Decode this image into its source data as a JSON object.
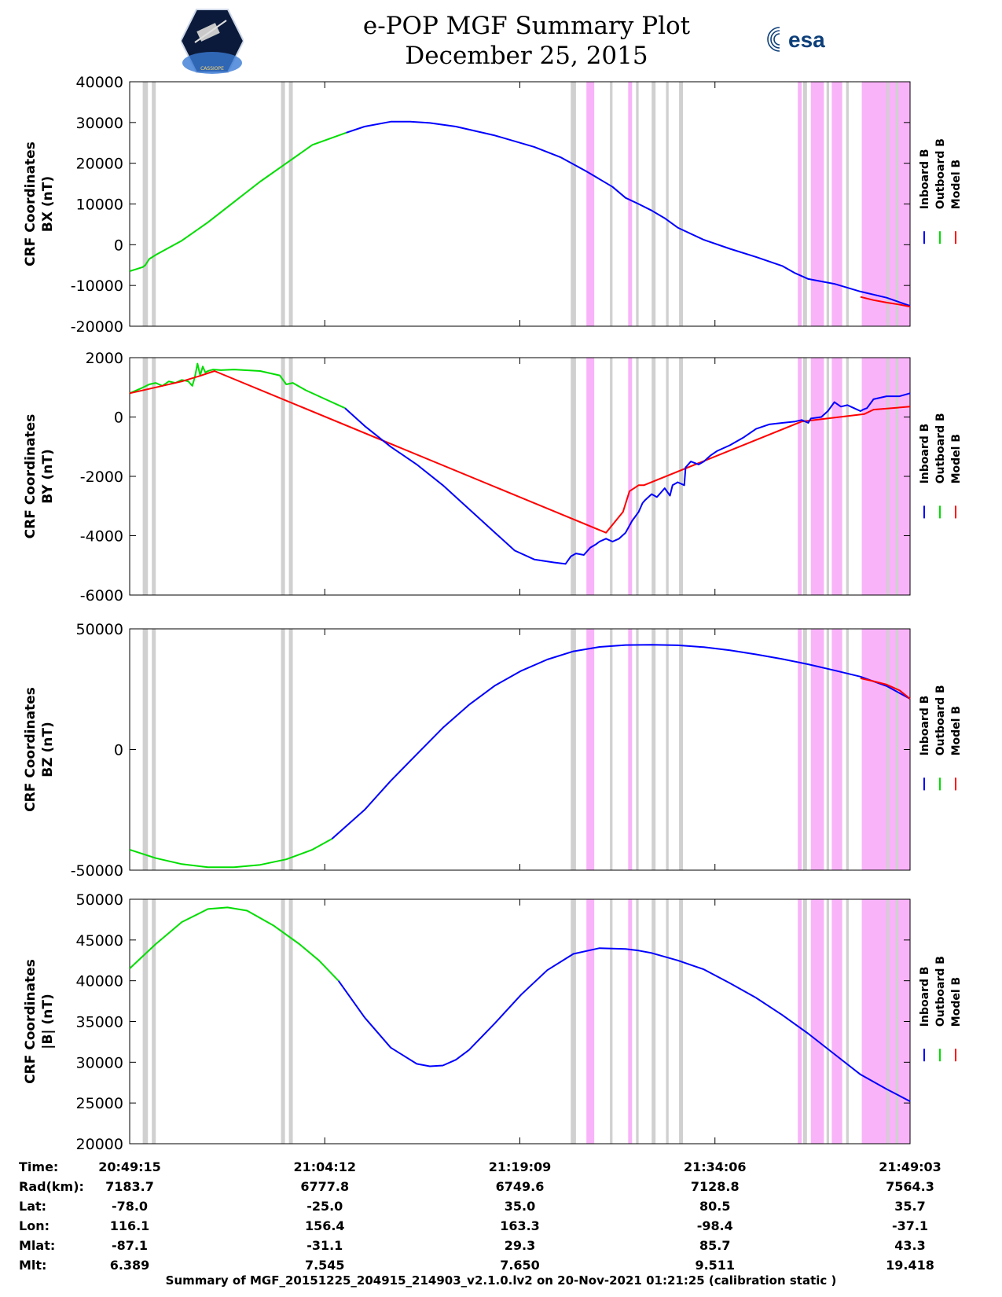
{
  "header": {
    "title": "e-POP MGF Summary Plot",
    "date": "December 25, 2015",
    "left_logo_text": "CASSIOPE",
    "right_logo_text": "esa"
  },
  "colors": {
    "inboard": "#0000ff",
    "outboard": "#00dd00",
    "model": "#ff0000",
    "gray_band": "#d0d0d0",
    "magenta_band": "#f9b3f9"
  },
  "legend": {
    "inboard": "Inboard B",
    "outboard": "Outboard B",
    "model": "Model B"
  },
  "time_axis": {
    "tmin_min": 0,
    "tmax_min": 59.8,
    "ticks": [
      {
        "t": 0,
        "label": "20:49:15"
      },
      {
        "t": 14.95,
        "label": "21:04:12"
      },
      {
        "t": 29.9,
        "label": "21:19:09"
      },
      {
        "t": 44.85,
        "label": "21:34:06"
      },
      {
        "t": 59.8,
        "label": "21:49:03"
      }
    ]
  },
  "bands": {
    "gray": [
      [
        1.0,
        1.4
      ],
      [
        1.7,
        2.0
      ],
      [
        11.6,
        11.9
      ],
      [
        12.2,
        12.5
      ],
      [
        33.8,
        34.2
      ],
      [
        36.8,
        37.0
      ],
      [
        38.8,
        39.0
      ],
      [
        40.0,
        40.3
      ],
      [
        41.1,
        41.3
      ],
      [
        42.1,
        42.4
      ],
      [
        51.6,
        51.9
      ],
      [
        53.4,
        53.6
      ],
      [
        54.9,
        55.1
      ],
      [
        58.0,
        58.2
      ],
      [
        58.7,
        58.9
      ]
    ],
    "magenta": [
      [
        35.0,
        35.6
      ],
      [
        38.2,
        38.5
      ],
      [
        51.2,
        51.5
      ],
      [
        52.2,
        53.2
      ],
      [
        53.8,
        54.6
      ],
      [
        56.1,
        59.8
      ]
    ]
  },
  "chart_data": [
    {
      "type": "line",
      "name": "bx",
      "ylabel": "CRF Coordinates",
      "ylabel_unit": "BX (nT)",
      "ylim": [
        -20000,
        40000
      ],
      "yticks": [
        -20000,
        -10000,
        0,
        10000,
        20000,
        30000,
        40000
      ],
      "series": [
        {
          "name": "Outboard B",
          "color": "green",
          "x": [
            0,
            0.5,
            1,
            1.2,
            1.5,
            2,
            4,
            6,
            8,
            10,
            12,
            14,
            16.6
          ],
          "values": [
            -6500,
            -6000,
            -5500,
            -5000,
            -3500,
            -2500,
            1000,
            5500,
            10500,
            15500,
            20000,
            24500,
            27500
          ]
        },
        {
          "name": "Inboard B",
          "color": "blue",
          "x": [
            16.6,
            18,
            20,
            21.5,
            23,
            25,
            28,
            31,
            33,
            35,
            37,
            38,
            39,
            40,
            41,
            42,
            44,
            46,
            48,
            50,
            51,
            52,
            54,
            56,
            58,
            59.8
          ],
          "values": [
            27500,
            29000,
            30200,
            30200,
            29900,
            29000,
            26800,
            24000,
            21500,
            18000,
            14200,
            11500,
            10000,
            8400,
            6500,
            4200,
            1200,
            -1000,
            -3000,
            -5200,
            -7000,
            -8400,
            -9600,
            -11500,
            -13000,
            -15000
          ]
        },
        {
          "name": "Model B",
          "color": "red",
          "x": [
            56,
            57,
            58,
            59,
            59.8
          ],
          "values": [
            -12800,
            -13600,
            -14200,
            -14700,
            -15200
          ]
        }
      ]
    },
    {
      "type": "line",
      "name": "by",
      "ylabel": "CRF Coordinates",
      "ylabel_unit": "BY (nT)",
      "ylim": [
        -6000,
        2000
      ],
      "yticks": [
        -6000,
        -4000,
        -2000,
        0,
        2000
      ],
      "series": [
        {
          "name": "Outboard B",
          "color": "green",
          "x": [
            0,
            0.8,
            1.5,
            2.0,
            2.5,
            3.0,
            3.5,
            4.0,
            4.5,
            4.8,
            5.0,
            5.2,
            5.4,
            5.6,
            5.8,
            6.0,
            6.4,
            7,
            8,
            10,
            11.5,
            12.0,
            12.5,
            13.5,
            15,
            16.5
          ],
          "values": [
            800,
            950,
            1100,
            1150,
            1050,
            1200,
            1150,
            1250,
            1200,
            1050,
            1350,
            1800,
            1400,
            1700,
            1500,
            1550,
            1600,
            1580,
            1600,
            1550,
            1400,
            1100,
            1150,
            900,
            600,
            300
          ]
        },
        {
          "name": "Model B",
          "color": "red",
          "x": [
            0,
            2,
            4,
            5.5,
            6.5,
            36.5,
            37.8,
            38.3,
            39.0,
            39.4,
            51.5,
            56.3,
            57,
            59.8
          ],
          "values": [
            800,
            1000,
            1200,
            1400,
            1550,
            -3900,
            -3200,
            -2500,
            -2300,
            -2300,
            -150,
            100,
            250,
            350
          ]
        },
        {
          "name": "Inboard B",
          "color": "blue",
          "x": [
            16.5,
            18,
            20,
            22,
            24,
            26,
            28,
            29.5,
            31,
            32.5,
            33.4,
            33.8,
            34.2,
            34.8,
            35.3,
            35.7,
            36.0,
            36.5,
            37.0,
            37.5,
            38.0,
            38.5,
            39.0,
            39.3,
            39.5,
            40,
            40.4,
            41.0,
            41.4,
            41.6,
            42.0,
            42.5,
            42.6,
            43.0,
            43.6,
            44.0,
            44.5,
            45,
            46,
            47,
            48,
            49,
            50,
            51,
            51.5,
            52,
            52.2,
            53.0,
            53.5,
            54,
            54.5,
            55.0,
            55.5,
            56.0,
            56.2,
            56.5,
            57.0,
            58.0,
            59.0,
            59.8
          ],
          "values": [
            300,
            -300,
            -1000,
            -1600,
            -2300,
            -3100,
            -3900,
            -4500,
            -4800,
            -4900,
            -4950,
            -4700,
            -4600,
            -4650,
            -4400,
            -4300,
            -4200,
            -4100,
            -4200,
            -4100,
            -3900,
            -3500,
            -3200,
            -2900,
            -2800,
            -2600,
            -2700,
            -2400,
            -2650,
            -2300,
            -2200,
            -2300,
            -1700,
            -1500,
            -1600,
            -1500,
            -1300,
            -1150,
            -950,
            -700,
            -400,
            -250,
            -200,
            -150,
            -100,
            -200,
            -50,
            0,
            200,
            500,
            350,
            400,
            300,
            200,
            250,
            300,
            600,
            700,
            700,
            800
          ]
        }
      ]
    },
    {
      "type": "line",
      "name": "bz",
      "ylabel": "CRF Coordinates",
      "ylabel_unit": "BZ (nT)",
      "ylim": [
        -50000,
        50000
      ],
      "yticks": [
        -50000,
        0,
        50000
      ],
      "series": [
        {
          "name": "Outboard B",
          "color": "green",
          "x": [
            0,
            2,
            4,
            6,
            8,
            10,
            12,
            14,
            15.5
          ],
          "values": [
            -41500,
            -45000,
            -47500,
            -48800,
            -48800,
            -47800,
            -45500,
            -41500,
            -37000
          ]
        },
        {
          "name": "Inboard B",
          "color": "blue",
          "x": [
            15.5,
            18,
            20,
            22,
            24,
            26,
            28,
            30,
            32,
            34,
            36,
            38,
            40,
            42,
            44,
            46,
            48,
            50,
            52,
            54,
            56,
            58,
            59.8
          ],
          "values": [
            -37000,
            -25000,
            -13000,
            -2000,
            9000,
            18500,
            26500,
            32600,
            37300,
            40700,
            42500,
            43300,
            43400,
            43200,
            42400,
            41100,
            39400,
            37500,
            35300,
            32800,
            30200,
            26300,
            21000
          ]
        },
        {
          "name": "Model B",
          "color": "red",
          "x": [
            56,
            57,
            58,
            59,
            59.8
          ],
          "values": [
            29500,
            28300,
            26900,
            24500,
            21000
          ]
        }
      ]
    },
    {
      "type": "line",
      "name": "btotal",
      "ylabel": "CRF Coordinates",
      "ylabel_unit": "|B| (nT)",
      "ylim": [
        20000,
        50000
      ],
      "yticks": [
        20000,
        25000,
        30000,
        35000,
        40000,
        45000,
        50000
      ],
      "series": [
        {
          "name": "Outboard B",
          "color": "green",
          "x": [
            0,
            2,
            4,
            6,
            7.5,
            9,
            11,
            13,
            14.5,
            16
          ],
          "values": [
            41500,
            44500,
            47200,
            48800,
            49000,
            48600,
            46800,
            44500,
            42500,
            40000
          ]
        },
        {
          "name": "Inboard B",
          "color": "blue",
          "x": [
            16,
            18,
            20,
            22,
            23,
            24,
            25,
            26,
            28,
            30,
            32,
            34,
            36,
            38,
            39,
            40,
            42,
            44,
            46,
            48,
            50,
            52,
            54,
            56,
            58,
            59.8
          ],
          "values": [
            40000,
            35500,
            31800,
            29800,
            29500,
            29600,
            30300,
            31500,
            34800,
            38300,
            41300,
            43300,
            44000,
            43900,
            43700,
            43400,
            42500,
            41400,
            39700,
            37900,
            35800,
            33500,
            31000,
            28500,
            26700,
            25200
          ]
        }
      ]
    }
  ],
  "info_table": {
    "rows": [
      {
        "label": "Time:",
        "values": [
          "20:49:15",
          "21:04:12",
          "21:19:09",
          "21:34:06",
          "21:49:03"
        ]
      },
      {
        "label": "Rad(km):",
        "values": [
          "7183.7",
          "6777.8",
          "6749.6",
          "7128.8",
          "7564.3"
        ]
      },
      {
        "label": "Lat:",
        "values": [
          "-78.0",
          "-25.0",
          "35.0",
          "80.5",
          "35.7"
        ]
      },
      {
        "label": "Lon:",
        "values": [
          "116.1",
          "156.4",
          "163.3",
          "-98.4",
          "-37.1"
        ]
      },
      {
        "label": "Mlat:",
        "values": [
          "-87.1",
          "-31.1",
          "29.3",
          "85.7",
          "43.3"
        ]
      },
      {
        "label": "Mlt:",
        "values": [
          "6.389",
          "7.545",
          "7.650",
          "9.511",
          "19.418"
        ]
      }
    ]
  },
  "footer": "Summary of MGF_20151225_204915_214903_v2.1.0.lv2 on 20-Nov-2021 01:21:25 (calibration static )"
}
